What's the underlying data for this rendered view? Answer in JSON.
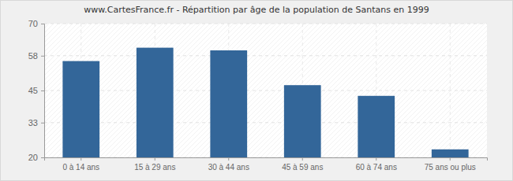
{
  "chart_data": {
    "type": "bar",
    "title": "www.CartesFrance.fr - Répartition par âge de la population de Santans en 1999",
    "categories": [
      "0 à 14 ans",
      "15 à 29 ans",
      "30 à 44 ans",
      "45 à 59 ans",
      "60 à 74 ans",
      "75 ans ou plus"
    ],
    "values": [
      56,
      61,
      60,
      47,
      43,
      23
    ],
    "color": "#336699",
    "ylim": [
      20,
      70
    ],
    "yticks": [
      20,
      33,
      45,
      58,
      70
    ],
    "grid": true
  }
}
